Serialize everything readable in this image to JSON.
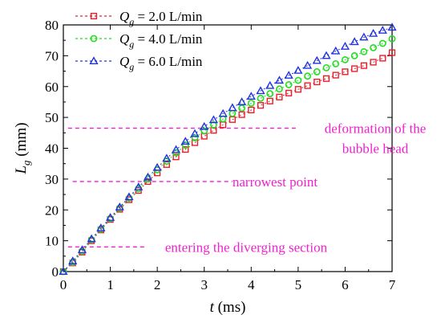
{
  "chart_data": {
    "type": "scatter",
    "xlabel_symbol": "t",
    "xlabel_unit": " (ms)",
    "ylabel_symbol": "L",
    "ylabel_sub": "g",
    "ylabel_unit": " (mm)",
    "xlim": [
      0,
      7
    ],
    "ylim": [
      0,
      80
    ],
    "xticks": [
      0,
      1,
      2,
      3,
      4,
      5,
      6,
      7
    ],
    "yticks": [
      0,
      10,
      20,
      30,
      40,
      50,
      60,
      70,
      80
    ],
    "legend_position": "top-left",
    "grid": false,
    "series": [
      {
        "name": "Qg = 2.0 L/min",
        "label_symbol": "Q",
        "label_sub": "g",
        "label_rest": " = 2.0 L/min",
        "color": "#e8202a",
        "marker": "square",
        "points": [
          [
            0,
            0
          ],
          [
            0.2,
            2.8
          ],
          [
            0.4,
            6.3
          ],
          [
            0.6,
            10.0
          ],
          [
            0.8,
            13.5
          ],
          [
            1.0,
            16.9
          ],
          [
            1.2,
            20.2
          ],
          [
            1.4,
            23.3
          ],
          [
            1.6,
            26.3
          ],
          [
            1.8,
            29.2
          ],
          [
            2.0,
            32.0
          ],
          [
            2.2,
            34.7
          ],
          [
            2.4,
            37.2
          ],
          [
            2.6,
            39.6
          ],
          [
            2.8,
            41.8
          ],
          [
            3.0,
            43.9
          ],
          [
            3.2,
            45.8
          ],
          [
            3.4,
            47.6
          ],
          [
            3.6,
            49.3
          ],
          [
            3.8,
            50.9
          ],
          [
            4.0,
            52.4
          ],
          [
            4.2,
            53.9
          ],
          [
            4.4,
            55.3
          ],
          [
            4.6,
            56.6
          ],
          [
            4.8,
            57.9
          ],
          [
            5.0,
            59.1
          ],
          [
            5.2,
            60.3
          ],
          [
            5.4,
            61.5
          ],
          [
            5.6,
            62.6
          ],
          [
            5.8,
            63.7
          ],
          [
            6.0,
            64.8
          ],
          [
            6.2,
            65.8
          ],
          [
            6.4,
            66.8
          ],
          [
            6.6,
            67.9
          ],
          [
            6.8,
            69.2
          ],
          [
            7.0,
            71.0
          ]
        ]
      },
      {
        "name": "Qg = 4.0 L/min",
        "label_symbol": "Q",
        "label_sub": "g",
        "label_rest": " = 4.0 L/min",
        "color": "#22dd22",
        "marker": "circle",
        "points": [
          [
            0,
            0
          ],
          [
            0.2,
            3.0
          ],
          [
            0.4,
            6.6
          ],
          [
            0.6,
            10.3
          ],
          [
            0.8,
            13.8
          ],
          [
            1.0,
            17.2
          ],
          [
            1.2,
            20.6
          ],
          [
            1.4,
            23.8
          ],
          [
            1.6,
            26.9
          ],
          [
            1.8,
            30.0
          ],
          [
            2.0,
            33.0
          ],
          [
            2.2,
            35.8
          ],
          [
            2.4,
            38.5
          ],
          [
            2.6,
            41.0
          ],
          [
            2.8,
            43.4
          ],
          [
            3.0,
            45.6
          ],
          [
            3.2,
            47.6
          ],
          [
            3.4,
            49.5
          ],
          [
            3.6,
            51.3
          ],
          [
            3.8,
            53.0
          ],
          [
            4.0,
            54.6
          ],
          [
            4.2,
            56.2
          ],
          [
            4.4,
            57.7
          ],
          [
            4.6,
            59.2
          ],
          [
            4.8,
            60.6
          ],
          [
            5.0,
            62.0
          ],
          [
            5.2,
            63.4
          ],
          [
            5.4,
            64.8
          ],
          [
            5.6,
            66.1
          ],
          [
            5.8,
            67.4
          ],
          [
            6.0,
            68.7
          ],
          [
            6.2,
            70.0
          ],
          [
            6.4,
            71.3
          ],
          [
            6.6,
            72.6
          ],
          [
            6.8,
            74.0
          ],
          [
            7.0,
            75.5
          ]
        ]
      },
      {
        "name": "Qg = 6.0 L/min",
        "label_symbol": "Q",
        "label_sub": "g",
        "label_rest": " = 6.0 L/min",
        "color": "#2233dd",
        "marker": "triangle",
        "points": [
          [
            0,
            0
          ],
          [
            0.2,
            3.4
          ],
          [
            0.4,
            7.0
          ],
          [
            0.6,
            10.6
          ],
          [
            0.8,
            14.1
          ],
          [
            1.0,
            17.5
          ],
          [
            1.2,
            20.9
          ],
          [
            1.4,
            24.2
          ],
          [
            1.6,
            27.4
          ],
          [
            1.8,
            30.6
          ],
          [
            2.0,
            33.7
          ],
          [
            2.2,
            36.7
          ],
          [
            2.4,
            39.5
          ],
          [
            2.6,
            42.2
          ],
          [
            2.8,
            44.7
          ],
          [
            3.0,
            47.0
          ],
          [
            3.2,
            49.2
          ],
          [
            3.4,
            51.2
          ],
          [
            3.6,
            53.1
          ],
          [
            3.8,
            55.0
          ],
          [
            4.0,
            56.8
          ],
          [
            4.2,
            58.6
          ],
          [
            4.4,
            60.3
          ],
          [
            4.6,
            62.0
          ],
          [
            4.8,
            63.6
          ],
          [
            5.0,
            65.2
          ],
          [
            5.2,
            66.8
          ],
          [
            5.4,
            68.4
          ],
          [
            5.6,
            70.0
          ],
          [
            5.8,
            71.5
          ],
          [
            6.0,
            73.0
          ],
          [
            6.2,
            74.5
          ],
          [
            6.4,
            76.0
          ],
          [
            6.6,
            77.2
          ],
          [
            6.8,
            78.2
          ],
          [
            7.0,
            79.2
          ]
        ]
      }
    ],
    "annotations": [
      {
        "text": "deformation of the",
        "y": 46.5,
        "x_from": 0.1,
        "x_to": 4.95,
        "color": "#ee22cc"
      },
      {
        "text": "bubble head",
        "color": "#ee22cc"
      },
      {
        "text": "narrowest point",
        "y": 29.2,
        "x_from": 0.2,
        "x_to": 3.6,
        "color": "#ee22cc"
      },
      {
        "text": "entering the diverging section",
        "y": 8.0,
        "x_from": 0.1,
        "x_to": 1.75,
        "color": "#ee22cc"
      }
    ]
  }
}
